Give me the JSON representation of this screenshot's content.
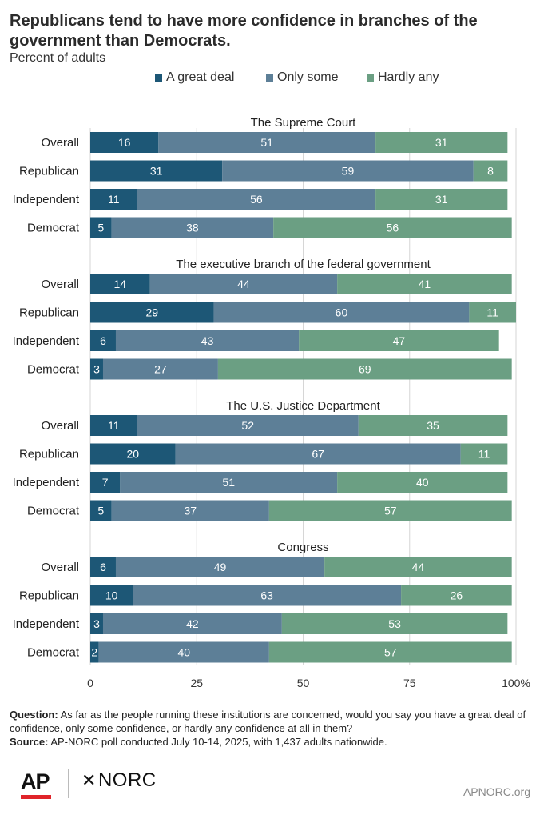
{
  "header": {
    "title": "Republicans tend to have more confidence in branches of the government than Democrats.",
    "subtitle": "Percent of adults"
  },
  "legend": {
    "items": [
      {
        "label": "A great deal",
        "color": "#1d5776"
      },
      {
        "label": "Only some",
        "color": "#5d7f97"
      },
      {
        "label": "Hardly any",
        "color": "#6b9f83"
      }
    ]
  },
  "chart_data": {
    "type": "bar",
    "orientation": "horizontal",
    "stacked": true,
    "xlim": [
      0,
      100
    ],
    "x_ticks": [
      "0",
      "25",
      "50",
      "75",
      "100%"
    ],
    "grid": "vertical",
    "legend_position": "top",
    "series_names": [
      "A great deal",
      "Only some",
      "Hardly any"
    ],
    "colors": [
      "#1d5776",
      "#5d7f97",
      "#6b9f83"
    ],
    "panels": [
      {
        "title": "The Supreme Court",
        "rows": [
          {
            "label": "Overall",
            "values": [
              16,
              51,
              31
            ]
          },
          {
            "label": "Republican",
            "values": [
              31,
              59,
              8
            ]
          },
          {
            "label": "Independent",
            "values": [
              11,
              56,
              31
            ]
          },
          {
            "label": "Democrat",
            "values": [
              5,
              38,
              56
            ]
          }
        ]
      },
      {
        "title": "The executive branch of the federal government",
        "rows": [
          {
            "label": "Overall",
            "values": [
              14,
              44,
              41
            ]
          },
          {
            "label": "Republican",
            "values": [
              29,
              60,
              11
            ]
          },
          {
            "label": "Independent",
            "values": [
              6,
              43,
              47
            ]
          },
          {
            "label": "Democrat",
            "values": [
              3,
              27,
              69
            ]
          }
        ]
      },
      {
        "title": "The U.S. Justice Department",
        "rows": [
          {
            "label": "Overall",
            "values": [
              11,
              52,
              35
            ]
          },
          {
            "label": "Republican",
            "values": [
              20,
              67,
              11
            ]
          },
          {
            "label": "Independent",
            "values": [
              7,
              51,
              40
            ]
          },
          {
            "label": "Democrat",
            "values": [
              5,
              37,
              57
            ]
          }
        ]
      },
      {
        "title": "Congress",
        "rows": [
          {
            "label": "Overall",
            "values": [
              6,
              49,
              44
            ]
          },
          {
            "label": "Republican",
            "values": [
              10,
              63,
              26
            ]
          },
          {
            "label": "Independent",
            "values": [
              3,
              42,
              53
            ]
          },
          {
            "label": "Democrat",
            "values": [
              2,
              40,
              57
            ]
          }
        ]
      }
    ]
  },
  "footer": {
    "question_label": "Question:",
    "question_text": "As far as the people running these institutions are concerned, would you say you have a great deal of confidence, only some confidence, or hardly any confidence at all in them?",
    "source_label": "Source:",
    "source_text": "AP-NORC poll conducted July 10-14, 2025, with 1,437 adults nationwide.",
    "logo_ap": "AP",
    "logo_norc": "NORC",
    "site": "APNORC.org"
  }
}
